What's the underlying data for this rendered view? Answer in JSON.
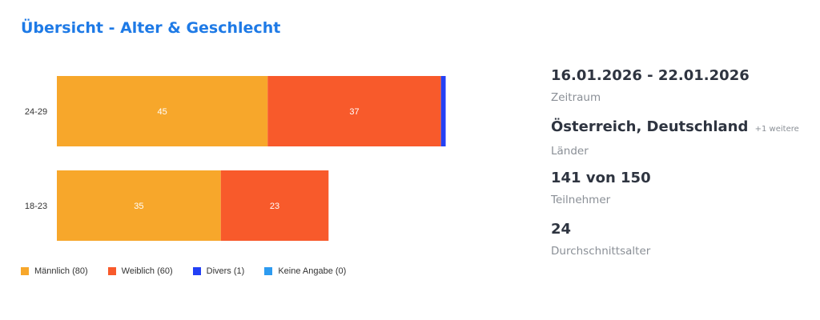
{
  "page": {
    "title": "Übersicht - Alter & Geschlecht"
  },
  "chart_data": {
    "type": "bar",
    "orientation": "horizontal",
    "stacked": true,
    "categories": [
      "24-29",
      "18-23"
    ],
    "series": [
      {
        "name": "Männlich (80)",
        "values": [
          45,
          35
        ],
        "color": "#f7a72b"
      },
      {
        "name": "Weiblich (60)",
        "values": [
          37,
          23
        ],
        "color": "#f85a2b"
      },
      {
        "name": "Divers (1)",
        "values": [
          1,
          0
        ],
        "color": "#2340f5"
      },
      {
        "name": "Keine Angabe (0)",
        "values": [
          0,
          0
        ],
        "color": "#2d9bf0"
      }
    ],
    "xlim": [
      0,
      100
    ],
    "grid": false,
    "legend": "bottom-left"
  },
  "stats": [
    {
      "value": "16.01.2026 - 22.01.2026",
      "extra": "",
      "label": "Zeitraum"
    },
    {
      "value": "Österreich, Deutschland",
      "extra": "+1 weitere",
      "label": "Länder"
    },
    {
      "value": "141 von 150",
      "extra": "",
      "label": "Teilnehmer"
    },
    {
      "value": "24",
      "extra": "",
      "label": "Durchschnittsalter"
    }
  ]
}
